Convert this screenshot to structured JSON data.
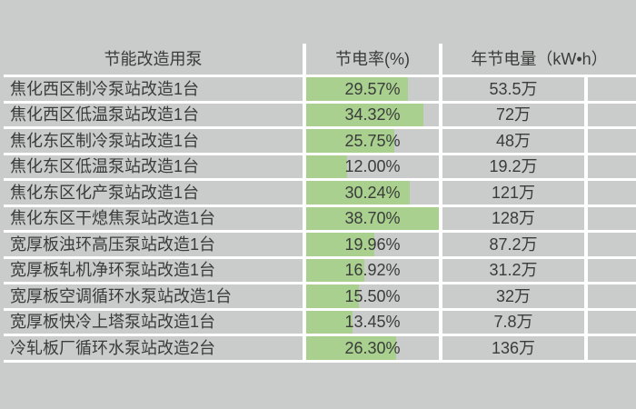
{
  "table": {
    "columns": [
      "节能改造用泵",
      "节电率(%)",
      "年节电量（kW•h）"
    ],
    "rows": [
      {
        "name": "焦化西区制冷泵站改造1台",
        "rate_label": "29.57%",
        "rate_value": 29.57,
        "annual": "53.5万"
      },
      {
        "name": "焦化西区低温泵站改造1台",
        "rate_label": "34.32%",
        "rate_value": 34.32,
        "annual": "72万"
      },
      {
        "name": "焦化东区制冷泵站改造1台",
        "rate_label": "25.75%",
        "rate_value": 25.75,
        "annual": "48万"
      },
      {
        "name": "焦化东区低温泵站改造1台",
        "rate_label": "12.00%",
        "rate_value": 12.0,
        "annual": "19.2万"
      },
      {
        "name": "焦化东区化产泵站改造1台",
        "rate_label": "30.24%",
        "rate_value": 30.24,
        "annual": "121万"
      },
      {
        "name": "焦化东区干熄焦泵站改造1台",
        "rate_label": "38.70%",
        "rate_value": 38.7,
        "annual": "128万"
      },
      {
        "name": "宽厚板浊环高压泵站改造1台",
        "rate_label": "19.96%",
        "rate_value": 19.96,
        "annual": "87.2万"
      },
      {
        "name": "宽厚板轧机净环泵站改造1台",
        "rate_label": "16.92%",
        "rate_value": 16.92,
        "annual": "31.2万"
      },
      {
        "name": "宽厚板空调循环水泵站改造1台",
        "rate_label": "15.50%",
        "rate_value": 15.5,
        "annual": "32万"
      },
      {
        "name": "宽厚板快冷上塔泵站改造1台",
        "rate_label": "13.45%",
        "rate_value": 13.45,
        "annual": "7.8万"
      },
      {
        "name": "冷轧板厂循环水泵站改造2台",
        "rate_label": "26.30%",
        "rate_value": 26.3,
        "annual": "136万"
      }
    ]
  },
  "chart_data": {
    "type": "table",
    "title": "",
    "columns": [
      "节能改造用泵",
      "节电率(%)",
      "年节电量（kW•h）"
    ],
    "rows": [
      [
        "焦化西区制冷泵站改造1台",
        29.57,
        "53.5万"
      ],
      [
        "焦化西区低温泵站改造1台",
        34.32,
        "72万"
      ],
      [
        "焦化东区制冷泵站改造1台",
        25.75,
        "48万"
      ],
      [
        "焦化东区低温泵站改造1台",
        12.0,
        "19.2万"
      ],
      [
        "焦化东区化产泵站改造1台",
        30.24,
        "121万"
      ],
      [
        "焦化东区干熄焦泵站改造1台",
        38.7,
        "128万"
      ],
      [
        "宽厚板浊环高压泵站改造1台",
        19.96,
        "87.2万"
      ],
      [
        "宽厚板轧机净环泵站改造1台",
        16.92,
        "31.2万"
      ],
      [
        "宽厚板空调循环水泵站改造1台",
        15.5,
        "32万"
      ],
      [
        "宽厚板快冷上塔泵站改造1台",
        13.45,
        "7.8万"
      ],
      [
        "冷轧板厂循环水泵站改造2台",
        26.3,
        "136万"
      ]
    ],
    "databar_column": "节电率(%)",
    "databar_scale_max": 38.7,
    "layout": {
      "grid": "white gridlines on gray cells",
      "databar_fill_from": "cell left edge"
    }
  },
  "colors": {
    "background": "#cacccb",
    "cell_background": "#cacccb",
    "grid_line": "#ffffff",
    "databar_green": "#a9d08e",
    "text": "#3a3c3b"
  }
}
